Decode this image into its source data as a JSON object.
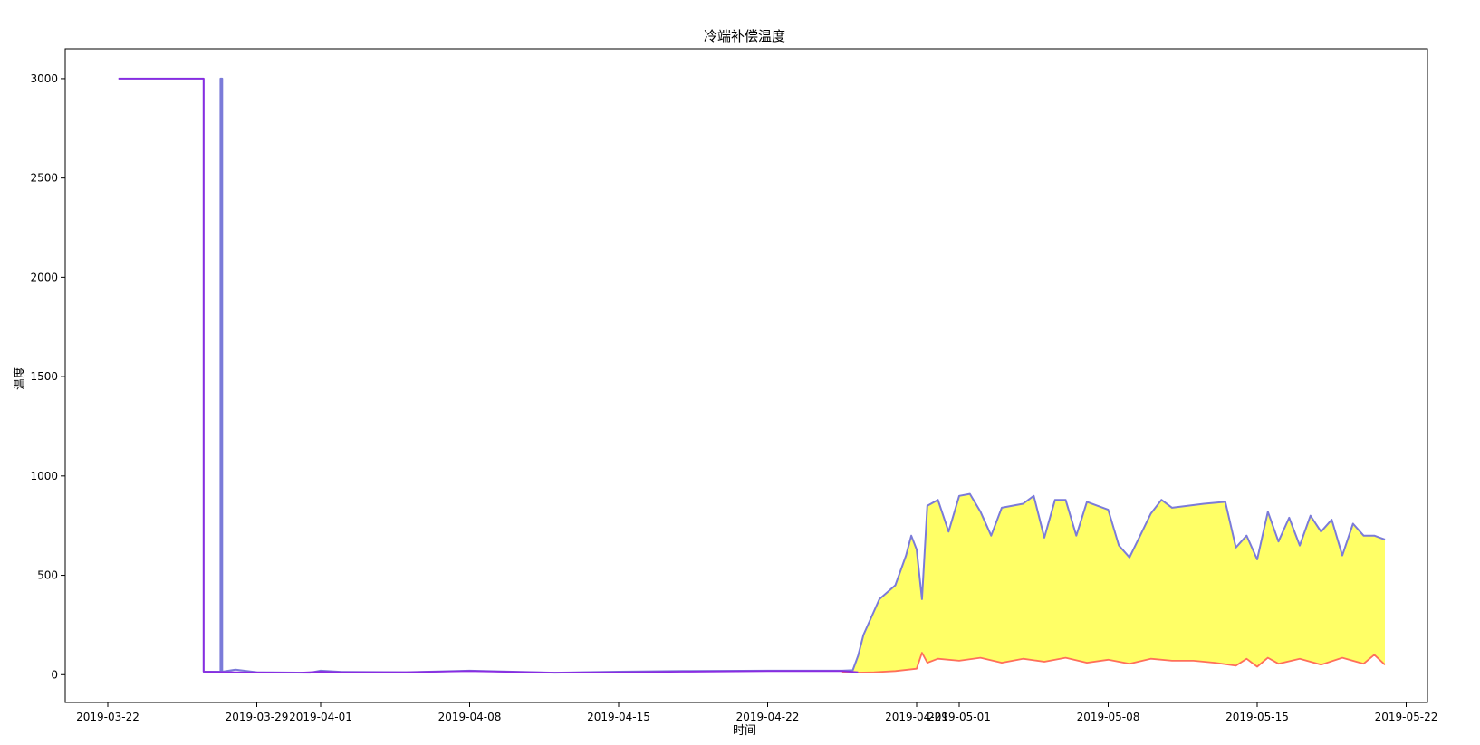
{
  "chart_data": {
    "type": "line",
    "title": "冷端补偿温度",
    "xlabel": "时间",
    "ylabel": "温度",
    "xlim": [
      "2019-03-20",
      "2019-05-23"
    ],
    "ylim": [
      -140,
      3150
    ],
    "x_ticks": [
      "2019-03-22",
      "2019-03-29",
      "2019-04-01",
      "2019-04-08",
      "2019-04-15",
      "2019-04-22",
      "2019-04-29",
      "2019-05-01",
      "2019-05-08",
      "2019-05-15",
      "2019-05-22"
    ],
    "y_ticks": [
      0,
      500,
      1000,
      1500,
      2000,
      2500,
      3000
    ],
    "grid": false,
    "legend": "none",
    "fill_between": {
      "upper_series": 0,
      "lower_series": 1,
      "color": "#ffff66",
      "start": "2019-04-26"
    },
    "series": [
      {
        "color": "#7b7bd9",
        "points": [
          [
            "2019-03-22 12:00",
            3000
          ],
          [
            "2019-03-26 12:00",
            3000
          ],
          [
            "2019-03-26 12:00",
            15
          ],
          [
            "2019-03-27 07:00",
            15
          ],
          [
            "2019-03-27 07:00",
            3000
          ],
          [
            "2019-03-27 09:00",
            3000
          ],
          [
            "2019-03-27 09:00",
            15
          ],
          [
            "2019-03-28 00:00",
            25
          ],
          [
            "2019-03-29 00:00",
            12
          ],
          [
            "2019-03-31 12:00",
            10
          ],
          [
            "2019-04-01 00:00",
            20
          ],
          [
            "2019-04-02 00:00",
            14
          ],
          [
            "2019-04-05 00:00",
            12
          ],
          [
            "2019-04-08 00:00",
            20
          ],
          [
            "2019-04-12 00:00",
            10
          ],
          [
            "2019-04-15 00:00",
            15
          ],
          [
            "2019-04-18 00:00",
            18
          ],
          [
            "2019-04-22 00:00",
            20
          ],
          [
            "2019-04-25 12:00",
            20
          ],
          [
            "2019-04-26 00:00",
            22
          ],
          [
            "2019-04-26 06:00",
            95
          ],
          [
            "2019-04-26 12:00",
            200
          ],
          [
            "2019-04-27 06:00",
            380
          ],
          [
            "2019-04-28 00:00",
            450
          ],
          [
            "2019-04-28 12:00",
            600
          ],
          [
            "2019-04-28 18:00",
            700
          ],
          [
            "2019-04-29 00:00",
            630
          ],
          [
            "2019-04-29 06:00",
            380
          ],
          [
            "2019-04-29 12:00",
            850
          ],
          [
            "2019-04-30 00:00",
            880
          ],
          [
            "2019-04-30 12:00",
            720
          ],
          [
            "2019-05-01 00:00",
            900
          ],
          [
            "2019-05-01 12:00",
            910
          ],
          [
            "2019-05-02 00:00",
            820
          ],
          [
            "2019-05-02 12:00",
            700
          ],
          [
            "2019-05-03 00:00",
            840
          ],
          [
            "2019-05-04 00:00",
            860
          ],
          [
            "2019-05-04 12:00",
            900
          ],
          [
            "2019-05-05 00:00",
            690
          ],
          [
            "2019-05-05 12:00",
            880
          ],
          [
            "2019-05-06 00:00",
            880
          ],
          [
            "2019-05-06 12:00",
            700
          ],
          [
            "2019-05-07 00:00",
            870
          ],
          [
            "2019-05-08 00:00",
            830
          ],
          [
            "2019-05-08 12:00",
            650
          ],
          [
            "2019-05-09 00:00",
            590
          ],
          [
            "2019-05-09 12:00",
            700
          ],
          [
            "2019-05-10 00:00",
            810
          ],
          [
            "2019-05-10 12:00",
            880
          ],
          [
            "2019-05-11 00:00",
            840
          ],
          [
            "2019-05-12 12:00",
            860
          ],
          [
            "2019-05-13 12:00",
            870
          ],
          [
            "2019-05-14 00:00",
            640
          ],
          [
            "2019-05-14 12:00",
            700
          ],
          [
            "2019-05-15 00:00",
            580
          ],
          [
            "2019-05-15 12:00",
            820
          ],
          [
            "2019-05-16 00:00",
            670
          ],
          [
            "2019-05-16 12:00",
            790
          ],
          [
            "2019-05-17 00:00",
            650
          ],
          [
            "2019-05-17 12:00",
            800
          ],
          [
            "2019-05-18 00:00",
            720
          ],
          [
            "2019-05-18 12:00",
            780
          ],
          [
            "2019-05-19 00:00",
            600
          ],
          [
            "2019-05-19 12:00",
            760
          ],
          [
            "2019-05-20 00:00",
            700
          ],
          [
            "2019-05-20 12:00",
            700
          ],
          [
            "2019-05-21 00:00",
            680
          ]
        ]
      },
      {
        "color": "#ff6f5a",
        "points": [
          [
            "2019-04-25 12:00",
            12
          ],
          [
            "2019-04-26 00:00",
            10
          ],
          [
            "2019-04-27 00:00",
            12
          ],
          [
            "2019-04-28 00:00",
            18
          ],
          [
            "2019-04-29 00:00",
            30
          ],
          [
            "2019-04-29 06:00",
            110
          ],
          [
            "2019-04-29 12:00",
            60
          ],
          [
            "2019-04-30 00:00",
            80
          ],
          [
            "2019-05-01 00:00",
            70
          ],
          [
            "2019-05-02 00:00",
            85
          ],
          [
            "2019-05-03 00:00",
            60
          ],
          [
            "2019-05-04 00:00",
            80
          ],
          [
            "2019-05-05 00:00",
            65
          ],
          [
            "2019-05-06 00:00",
            85
          ],
          [
            "2019-05-07 00:00",
            60
          ],
          [
            "2019-05-08 00:00",
            75
          ],
          [
            "2019-05-09 00:00",
            55
          ],
          [
            "2019-05-10 00:00",
            80
          ],
          [
            "2019-05-11 00:00",
            70
          ],
          [
            "2019-05-12 00:00",
            70
          ],
          [
            "2019-05-13 00:00",
            60
          ],
          [
            "2019-05-14 00:00",
            45
          ],
          [
            "2019-05-14 12:00",
            80
          ],
          [
            "2019-05-15 00:00",
            40
          ],
          [
            "2019-05-15 12:00",
            85
          ],
          [
            "2019-05-16 00:00",
            55
          ],
          [
            "2019-05-17 00:00",
            80
          ],
          [
            "2019-05-18 00:00",
            50
          ],
          [
            "2019-05-19 00:00",
            85
          ],
          [
            "2019-05-20 00:00",
            55
          ],
          [
            "2019-05-20 12:00",
            100
          ],
          [
            "2019-05-21 00:00",
            50
          ]
        ]
      },
      {
        "color": "#8a2be2",
        "points": [
          [
            "2019-03-22 12:00",
            3000
          ],
          [
            "2019-03-26 12:00",
            3000
          ],
          [
            "2019-03-26 12:00",
            15
          ],
          [
            "2019-03-28 00:00",
            12
          ],
          [
            "2019-03-31 00:00",
            10
          ],
          [
            "2019-04-01 00:00",
            15
          ],
          [
            "2019-04-02 00:00",
            12
          ],
          [
            "2019-04-05 00:00",
            12
          ],
          [
            "2019-04-08 00:00",
            18
          ],
          [
            "2019-04-12 00:00",
            10
          ],
          [
            "2019-04-15 00:00",
            12
          ],
          [
            "2019-04-18 00:00",
            15
          ],
          [
            "2019-04-22 00:00",
            18
          ],
          [
            "2019-04-25 12:00",
            18
          ],
          [
            "2019-04-26 06:00",
            12
          ]
        ]
      }
    ]
  }
}
